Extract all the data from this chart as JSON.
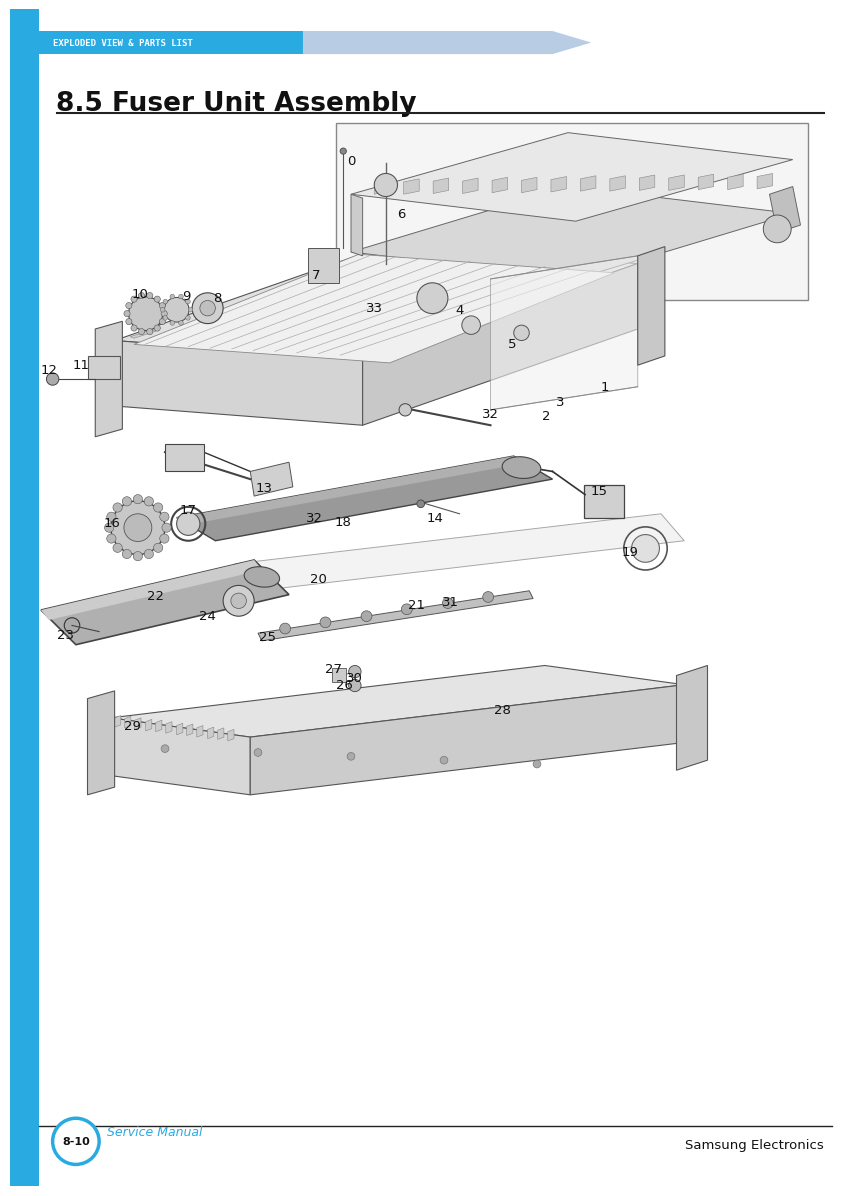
{
  "page_width": 10.8,
  "page_height": 15.28,
  "bg_color": "#ffffff",
  "blue_color": "#29abe2",
  "light_blue_header": "#b8cce4",
  "header_text": "EXPLODED VIEW & PARTS LIST",
  "header_text_color": "#ffffff",
  "title": "8.5 Fuser Unit Assembly",
  "title_fontsize": 19,
  "footer_page": "8-10",
  "footer_service": "Service Manual",
  "footer_company": "Samsung Electronics"
}
